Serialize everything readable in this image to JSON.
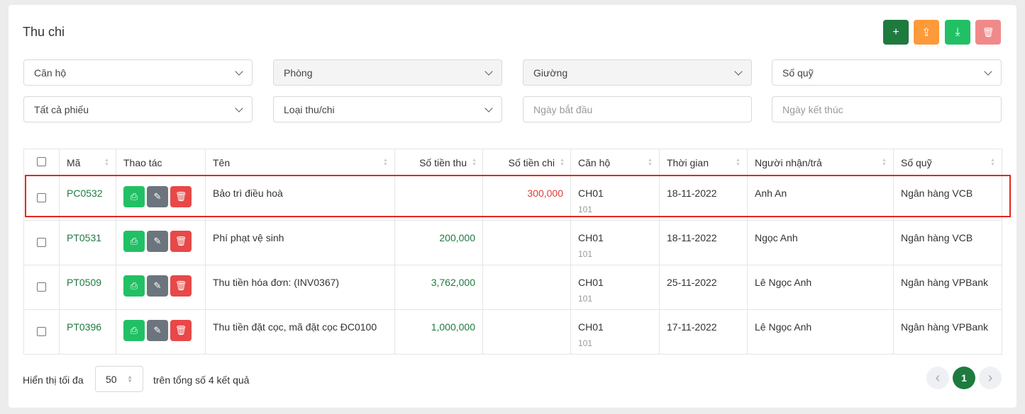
{
  "title": "Thu chi",
  "toolbar": {
    "add": "+",
    "upload": "⇪",
    "download": "⤓",
    "delete": "🗑"
  },
  "filters": {
    "apartment": "Căn hộ",
    "room": "Phòng",
    "bed": "Giường",
    "fund_book": "Số quỹ",
    "voucher_type": "Tất cả phiếu",
    "category": "Loại thu/chi",
    "start_date_placeholder": "Ngày bắt đầu",
    "end_date_placeholder": "Ngày kết thúc"
  },
  "table": {
    "headers": [
      "Mã",
      "Thao tác",
      "Tên",
      "Số tiền thu",
      "Số tiền chi",
      "Căn hộ",
      "Thời gian",
      "Người nhận/trả",
      "Số quỹ"
    ],
    "rows": [
      {
        "code": "PC0532",
        "name": "Bảo trì điều hoà",
        "income": "",
        "expense": "300,000",
        "apartment": "CH01",
        "room": "101",
        "time": "18-11-2022",
        "person": "Anh An",
        "fund": "Ngân hàng VCB"
      },
      {
        "code": "PT0531",
        "name": "Phí phạt vệ sinh",
        "income": "200,000",
        "expense": "",
        "apartment": "CH01",
        "room": "101",
        "time": "18-11-2022",
        "person": "Ngọc Anh",
        "fund": "Ngân hàng VCB"
      },
      {
        "code": "PT0509",
        "name": "Thu tiền hóa đơn: (INV0367)",
        "income": "3,762,000",
        "expense": "",
        "apartment": "CH01",
        "room": "101",
        "time": "25-11-2022",
        "person": "Lê Ngọc Anh",
        "fund": "Ngân hàng VPBank"
      },
      {
        "code": "PT0396",
        "name": "Thu tiền đặt cọc, mã đặt cọc ĐC0100",
        "income": "1,000,000",
        "expense": "",
        "apartment": "CH01",
        "room": "101",
        "time": "17-11-2022",
        "person": "Lê Ngọc Anh",
        "fund": "Ngân hàng VPBank"
      }
    ]
  },
  "footer": {
    "show_label": "Hiển thị tối đa",
    "page_size": "50",
    "total_text": "trên tổng số 4 kết quả",
    "current_page": "1",
    "prev": "‹",
    "next": "›"
  },
  "colors": {
    "primary": "#1e7a3f",
    "orange": "#fd9a3a",
    "green": "#22c065",
    "danger_light": "#f08a8a",
    "danger": "#e84848",
    "gray": "#6c757d",
    "highlight": "#e8261c"
  }
}
